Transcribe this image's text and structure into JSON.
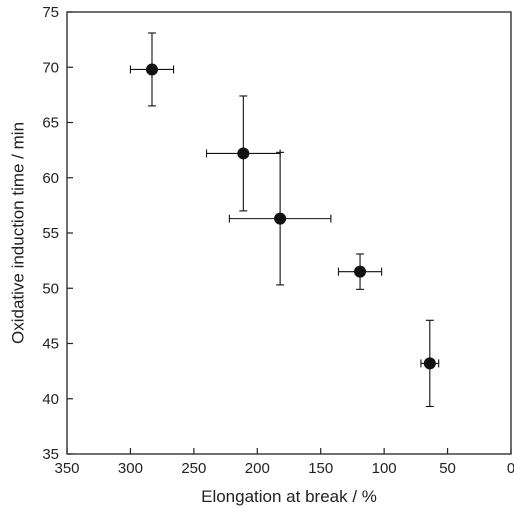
{
  "chart_data": {
    "type": "scatter",
    "xlabel": "Elongation at break / %",
    "ylabel": "Oxidative induction time / min",
    "xlim": [
      350,
      0
    ],
    "ylim": [
      35,
      75
    ],
    "x_reversed": true,
    "x_ticks": [
      350,
      300,
      250,
      200,
      150,
      100,
      50,
      0
    ],
    "y_ticks": [
      35,
      40,
      45,
      50,
      55,
      60,
      65,
      70,
      75
    ],
    "grid": false,
    "marker_color": "#111111",
    "points": [
      {
        "x": 283,
        "y": 69.8,
        "x_err": 17,
        "y_err": 3.3
      },
      {
        "x": 211,
        "y": 62.2,
        "x_err": 29,
        "y_err": 5.2
      },
      {
        "x": 182,
        "y": 56.3,
        "x_err": 40,
        "y_err": 6.0
      },
      {
        "x": 119,
        "y": 51.5,
        "x_err": 17,
        "y_err": 1.6
      },
      {
        "x": 64,
        "y": 43.2,
        "x_err": 7,
        "y_err": 3.9
      }
    ]
  }
}
